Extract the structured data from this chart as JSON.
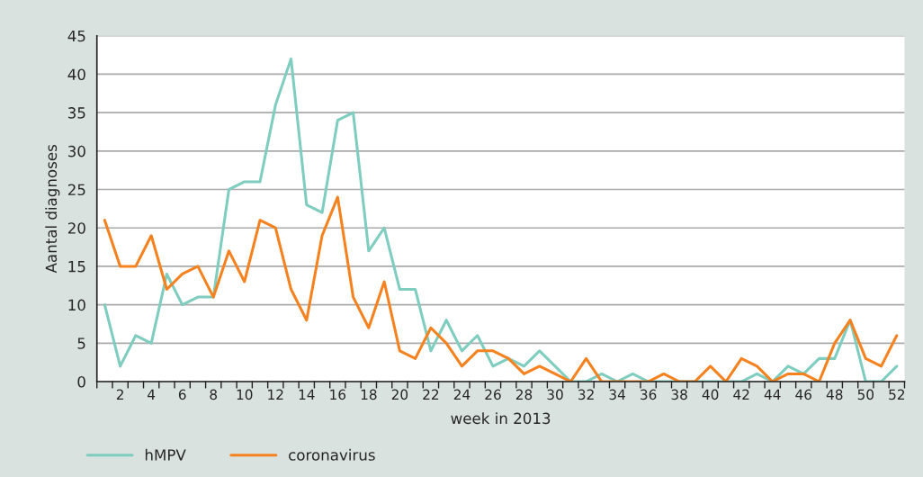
{
  "chart_data": {
    "type": "line",
    "xlabel": "week in 2013",
    "ylabel": "Aantal diagnoses",
    "categories": [
      null,
      "2",
      null,
      "4",
      null,
      "6",
      null,
      "8",
      null,
      "10",
      null,
      "12",
      null,
      "14",
      null,
      "16",
      null,
      "18",
      null,
      "20",
      null,
      "22",
      null,
      "24",
      null,
      "26",
      null,
      "28",
      null,
      "30",
      null,
      "32",
      null,
      "34",
      null,
      "36",
      null,
      "38",
      null,
      "40",
      null,
      "42",
      null,
      "44",
      null,
      "46",
      null,
      "48",
      null,
      "50",
      null,
      "52"
    ],
    "series": [
      {
        "name": "hMPV",
        "color": "#7fcdbe",
        "values": [
          10,
          2,
          6,
          5,
          14,
          10,
          11,
          11,
          25,
          26,
          26,
          36,
          42,
          23,
          22,
          34,
          35,
          17,
          20,
          12,
          12,
          4,
          8,
          4,
          6,
          2,
          3,
          2,
          4,
          2,
          0,
          0,
          1,
          0,
          1,
          0,
          0,
          0,
          0,
          0,
          0,
          0,
          1,
          0,
          2,
          1,
          3,
          3,
          8,
          0,
          0,
          2
        ]
      },
      {
        "name": "coronavirus",
        "color": "#f5821f",
        "values": [
          21,
          15,
          15,
          19,
          12,
          14,
          15,
          11,
          17,
          13,
          21,
          20,
          12,
          8,
          19,
          24,
          11,
          7,
          13,
          4,
          3,
          7,
          5,
          2,
          4,
          4,
          3,
          1,
          2,
          1,
          0,
          3,
          0,
          0,
          0,
          0,
          1,
          0,
          0,
          2,
          0,
          3,
          2,
          0,
          1,
          1,
          0,
          5,
          8,
          3,
          2,
          6
        ]
      }
    ],
    "ylim": [
      0,
      45
    ],
    "yticks": [
      0,
      5,
      10,
      15,
      20,
      25,
      30,
      35,
      40,
      45
    ],
    "grid": "y",
    "legend": "bottom left",
    "marker": "none",
    "line_style": "solid"
  }
}
